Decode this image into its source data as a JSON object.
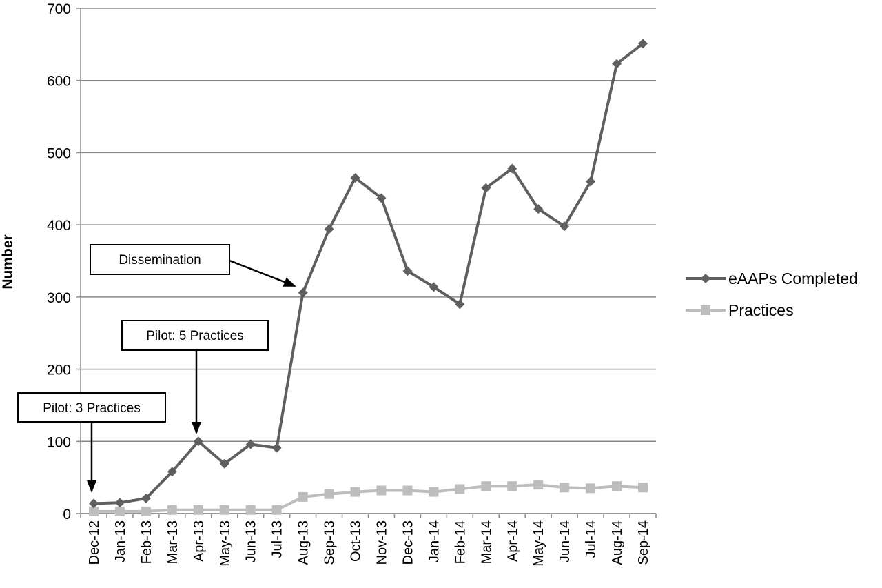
{
  "chart_data": {
    "type": "line",
    "y_label": "Number",
    "categories": [
      "Dec-12",
      "Jan-13",
      "Feb-13",
      "Mar-13",
      "Apr-13",
      "May-13",
      "Jun-13",
      "Jul-13",
      "Aug-13",
      "Sep-13",
      "Oct-13",
      "Nov-13",
      "Dec-13",
      "Jan-14",
      "Feb-14",
      "Mar-14",
      "Apr-14",
      "May-14",
      "Jun-14",
      "Jul-14",
      "Aug-14",
      "Sep-14"
    ],
    "series": [
      {
        "name": "eAAPs Completed",
        "color": "#5f5f5f",
        "marker": "diamond",
        "values": [
          14,
          15,
          21,
          58,
          100,
          69,
          96,
          91,
          306,
          394,
          465,
          437,
          336,
          314,
          290,
          451,
          478,
          422,
          398,
          460,
          623,
          651
        ]
      },
      {
        "name": "Practices",
        "color": "#bdbdbd",
        "marker": "square",
        "values": [
          3,
          3,
          3,
          5,
          5,
          5,
          5,
          5,
          23,
          27,
          30,
          32,
          32,
          30,
          34,
          38,
          38,
          40,
          36,
          35,
          38,
          36
        ]
      }
    ],
    "ylim": [
      0,
      700
    ],
    "yticks": [
      0,
      100,
      200,
      300,
      400,
      500,
      600,
      700
    ],
    "grid": true,
    "annotations": [
      {
        "text": "Dissemination"
      },
      {
        "text": "Pilot: 5 Practices"
      },
      {
        "text": "Pilot: 3 Practices"
      }
    ]
  }
}
